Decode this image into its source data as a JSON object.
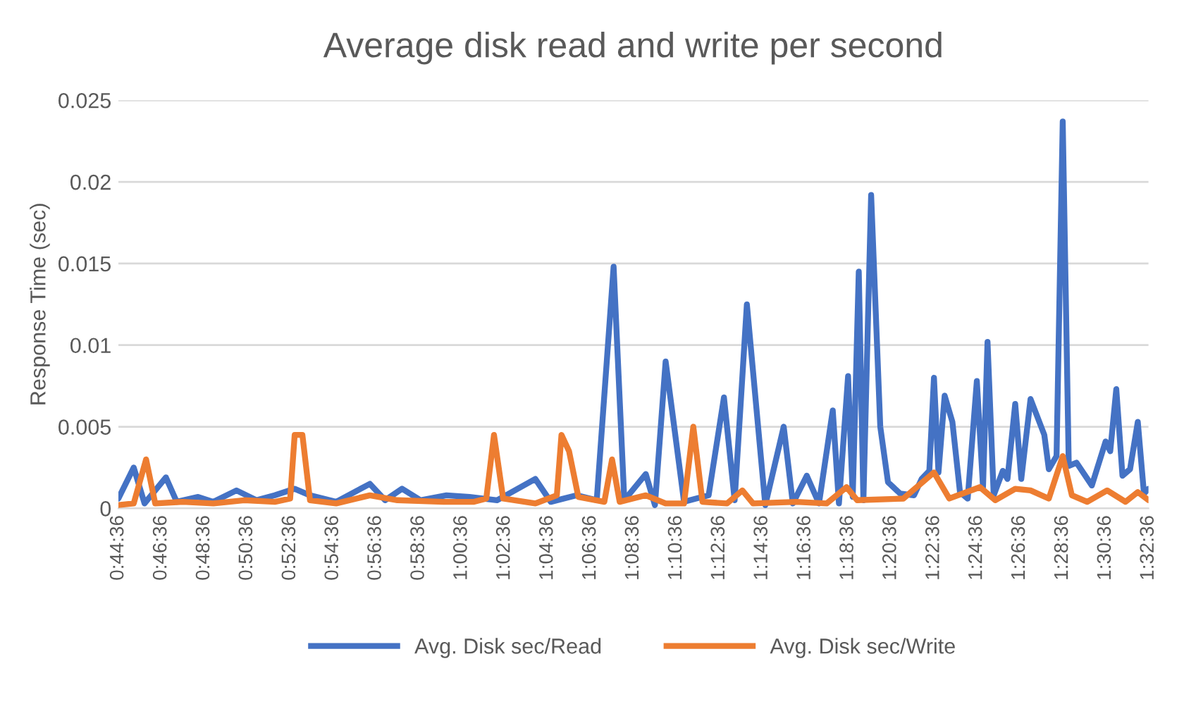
{
  "chart_data": {
    "type": "line",
    "title": "Average disk read and write per second",
    "ylabel": "Response Time (sec)",
    "xlim": [
      0.7433,
      1.5433
    ],
    "xticks": [
      {
        "value": 0.7433,
        "label": "0:44:36"
      },
      {
        "value": 0.7767,
        "label": "0:46:36"
      },
      {
        "value": 0.81,
        "label": "0:48:36"
      },
      {
        "value": 0.8433,
        "label": "0:50:36"
      },
      {
        "value": 0.8767,
        "label": "0:52:36"
      },
      {
        "value": 0.91,
        "label": "0:54:36"
      },
      {
        "value": 0.9433,
        "label": "0:56:36"
      },
      {
        "value": 0.9767,
        "label": "0:58:36"
      },
      {
        "value": 1.01,
        "label": "1:00:36"
      },
      {
        "value": 1.0433,
        "label": "1:02:36"
      },
      {
        "value": 1.0767,
        "label": "1:04:36"
      },
      {
        "value": 1.11,
        "label": "1:06:36"
      },
      {
        "value": 1.1433,
        "label": "1:08:36"
      },
      {
        "value": 1.1767,
        "label": "1:10:36"
      },
      {
        "value": 1.21,
        "label": "1:12:36"
      },
      {
        "value": 1.2433,
        "label": "1:14:36"
      },
      {
        "value": 1.2767,
        "label": "1:16:36"
      },
      {
        "value": 1.31,
        "label": "1:18:36"
      },
      {
        "value": 1.3433,
        "label": "1:20:36"
      },
      {
        "value": 1.3767,
        "label": "1:22:36"
      },
      {
        "value": 1.41,
        "label": "1:24:36"
      },
      {
        "value": 1.4433,
        "label": "1:26:36"
      },
      {
        "value": 1.4767,
        "label": "1:28:36"
      },
      {
        "value": 1.51,
        "label": "1:30:36"
      },
      {
        "value": 1.5433,
        "label": "1:32:36"
      }
    ],
    "ylim": [
      0,
      0.025
    ],
    "yticks": [
      0,
      0.005,
      0.01,
      0.015,
      0.02,
      0.025
    ],
    "grid": "y",
    "legend": "bottom",
    "marker": "none",
    "line_style": "solid",
    "series": [
      {
        "name": "Avg. Disk sec/Read",
        "color": "#4472c4",
        "x": [
          0.7433,
          0.7552,
          0.7636,
          0.7802,
          0.7886,
          0.8052,
          0.8171,
          0.835,
          0.8505,
          0.8648,
          0.8802,
          0.8921,
          0.9124,
          0.9386,
          0.9505,
          0.9636,
          0.9779,
          0.9981,
          1.016,
          1.0374,
          1.0671,
          1.0791,
          1.0993,
          1.1148,
          1.1279,
          1.1362,
          1.1529,
          1.16,
          1.1683,
          1.1826,
          1.2017,
          1.2136,
          1.2219,
          1.2314,
          1.2457,
          1.26,
          1.2671,
          1.2779,
          1.2874,
          1.2981,
          1.3029,
          1.31,
          1.3136,
          1.3183,
          1.3219,
          1.3279,
          1.335,
          1.341,
          1.3505,
          1.3612,
          1.3671,
          1.3731,
          1.3767,
          1.3802,
          1.385,
          1.391,
          1.3969,
          1.4029,
          1.41,
          1.4148,
          1.4183,
          1.4231,
          1.4302,
          1.4338,
          1.4398,
          1.4445,
          1.4517,
          1.4624,
          1.4659,
          1.4719,
          1.4767,
          1.4814,
          1.4874,
          1.4993,
          1.51,
          1.5136,
          1.5183,
          1.5231,
          1.529,
          1.535,
          1.5398,
          1.5433
        ],
        "values": [
          0.0006,
          0.0025,
          0.0003,
          0.0019,
          0.0004,
          0.0007,
          0.0004,
          0.0011,
          0.0005,
          0.0008,
          0.0012,
          0.0008,
          0.0004,
          0.0015,
          0.0005,
          0.0012,
          0.0005,
          0.0008,
          0.0007,
          0.0005,
          0.0018,
          0.0004,
          0.0008,
          0.0005,
          0.0148,
          0.0005,
          0.0021,
          0.0002,
          0.009,
          0.0004,
          0.0008,
          0.0068,
          0.0005,
          0.0125,
          0.0002,
          0.005,
          0.0003,
          0.002,
          0.0003,
          0.006,
          0.0003,
          0.0081,
          0.0007,
          0.0145,
          0.0005,
          0.0192,
          0.005,
          0.0016,
          0.0009,
          0.0008,
          0.0018,
          0.0023,
          0.008,
          0.0022,
          0.0069,
          0.0053,
          0.001,
          0.0006,
          0.0078,
          0.0013,
          0.0102,
          0.0008,
          0.0023,
          0.0018,
          0.0064,
          0.0018,
          0.0067,
          0.0045,
          0.0024,
          0.0032,
          0.0237,
          0.0026,
          0.0028,
          0.0014,
          0.0041,
          0.0035,
          0.0073,
          0.002,
          0.0024,
          0.0053,
          0.0009,
          0.0012
        ]
      },
      {
        "name": "Avg. Disk sec/Write",
        "color": "#ed7d31",
        "x": [
          0.7433,
          0.7552,
          0.7648,
          0.7719,
          0.7933,
          0.8171,
          0.841,
          0.8648,
          0.8767,
          0.8802,
          0.8862,
          0.8921,
          0.9124,
          0.9386,
          0.96,
          0.9957,
          1.0195,
          1.029,
          1.035,
          1.0421,
          1.0671,
          1.0838,
          1.0874,
          1.0933,
          1.1005,
          1.1207,
          1.1267,
          1.1326,
          1.1529,
          1.1683,
          1.1826,
          1.1898,
          1.1969,
          1.216,
          1.2279,
          1.2362,
          1.2695,
          1.2933,
          1.3088,
          1.3171,
          1.3529,
          1.3767,
          1.3886,
          1.4124,
          1.4243,
          1.4398,
          1.4517,
          1.4659,
          1.4767,
          1.4838,
          1.4957,
          1.5112,
          1.5255,
          1.535,
          1.5433
        ],
        "values": [
          0.0002,
          0.0003,
          0.003,
          0.0003,
          0.0004,
          0.0003,
          0.0005,
          0.0004,
          0.0006,
          0.0045,
          0.0045,
          0.0005,
          0.0003,
          0.0008,
          0.0005,
          0.0004,
          0.0004,
          0.0006,
          0.0045,
          0.0006,
          0.0003,
          0.0008,
          0.0045,
          0.0035,
          0.0007,
          0.0004,
          0.003,
          0.0004,
          0.0008,
          0.0003,
          0.0003,
          0.005,
          0.0004,
          0.0003,
          0.0011,
          0.0003,
          0.0004,
          0.0003,
          0.0013,
          0.0005,
          0.0006,
          0.0022,
          0.0006,
          0.0013,
          0.0005,
          0.0012,
          0.0011,
          0.0006,
          0.0032,
          0.0008,
          0.0004,
          0.0011,
          0.0004,
          0.001,
          0.0005
        ]
      }
    ]
  }
}
